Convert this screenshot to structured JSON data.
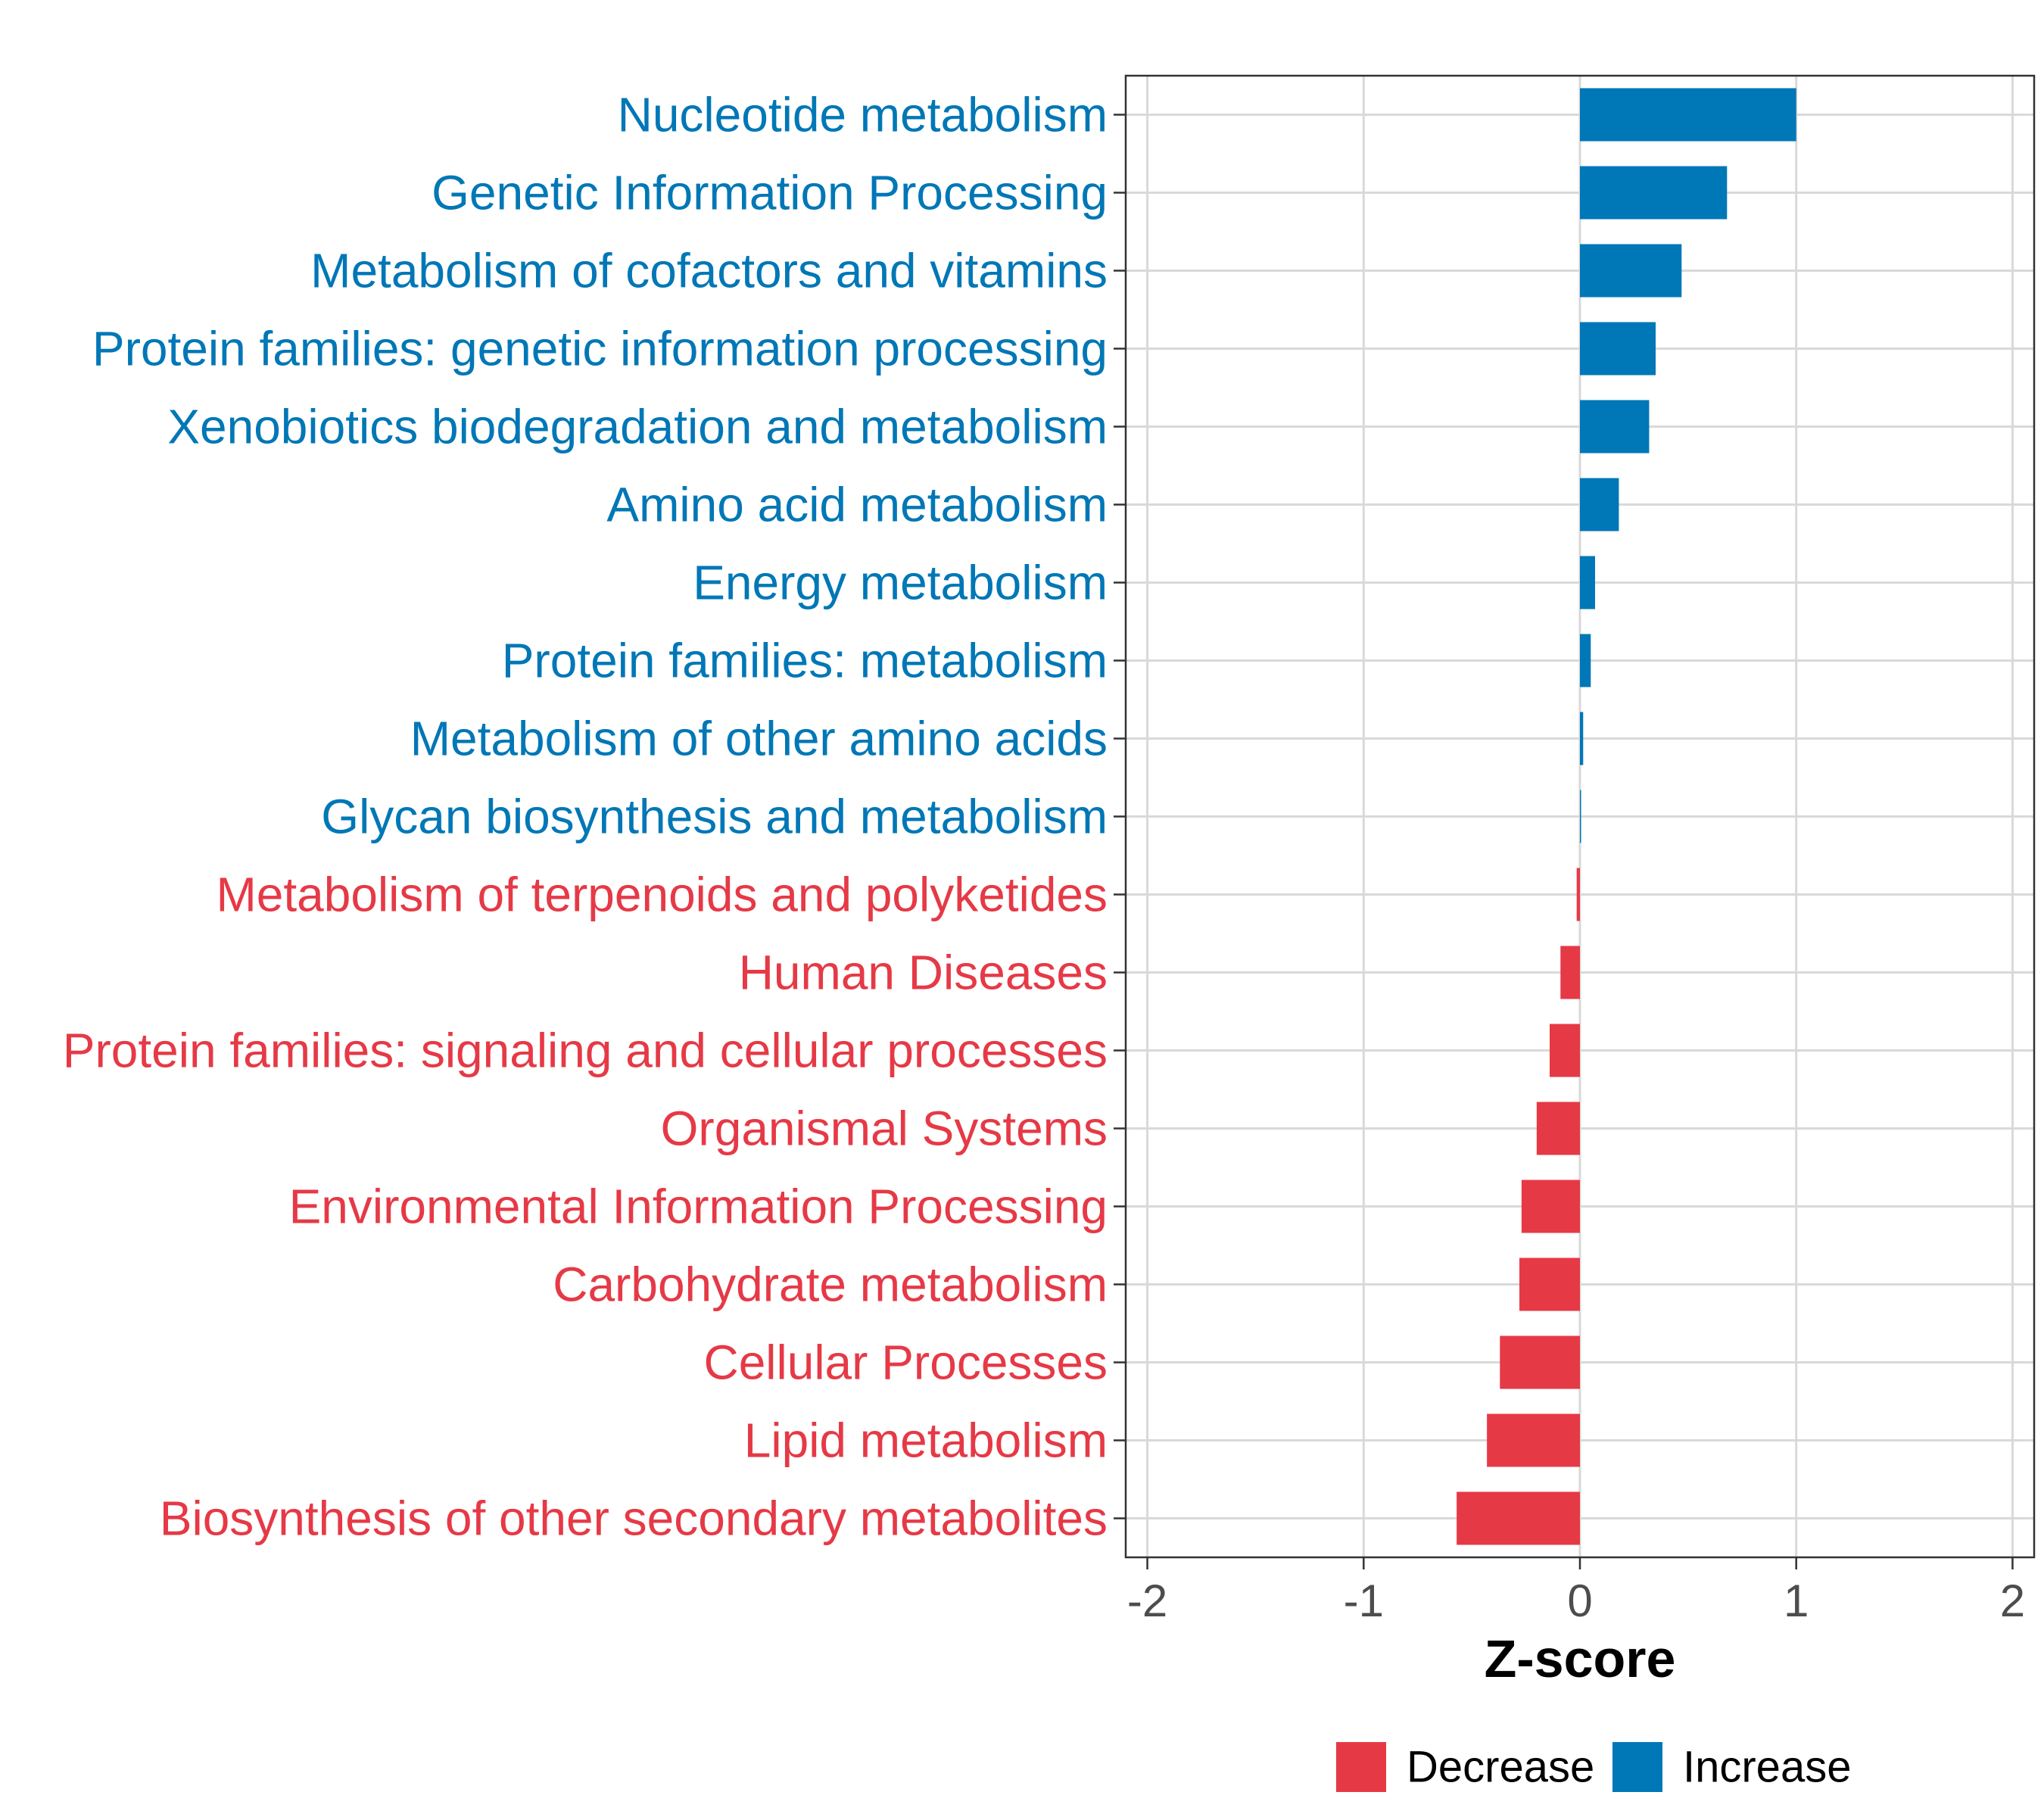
{
  "chart_data": {
    "type": "bar",
    "orientation": "horizontal",
    "title": "",
    "xlabel": "Z-score",
    "ylabel": "",
    "xlim": [
      -2.1,
      2.1
    ],
    "xticks": [
      -2,
      -1,
      0,
      1,
      2
    ],
    "xtick_labels": [
      "-2",
      "-1",
      "0",
      "1",
      "2"
    ],
    "grid": true,
    "colors": {
      "Decrease": "#e63946",
      "Increase": "#0077b6"
    },
    "legend": {
      "position": "bottom",
      "entries": [
        "Decrease",
        "Increase"
      ]
    },
    "categories": [
      "Nucleotide metabolism",
      "Genetic Information Processing",
      "Metabolism of cofactors and vitamins",
      "Protein families: genetic information processing",
      "Xenobiotics biodegradation and metabolism",
      "Amino acid metabolism",
      "Energy metabolism",
      "Protein families: metabolism",
      "Metabolism of other amino acids",
      "Glycan biosynthesis and metabolism",
      "Metabolism of terpenoids and polyketides",
      "Human Diseases",
      "Protein families: signaling and cellular processes",
      "Organismal Systems",
      "Environmental Information Processing",
      "Carbohydrate metabolism",
      "Cellular Processes",
      "Lipid metabolism",
      "Biosynthesis of other secondary metabolites"
    ],
    "values": [
      1.0,
      0.68,
      0.47,
      0.35,
      0.32,
      0.18,
      0.07,
      0.05,
      0.015,
      0.005,
      -0.015,
      -0.09,
      -0.14,
      -0.2,
      -0.27,
      -0.28,
      -0.37,
      -0.43,
      -0.57
    ],
    "groups": [
      "Increase",
      "Increase",
      "Increase",
      "Increase",
      "Increase",
      "Increase",
      "Increase",
      "Increase",
      "Increase",
      "Increase",
      "Decrease",
      "Decrease",
      "Decrease",
      "Decrease",
      "Decrease",
      "Decrease",
      "Decrease",
      "Decrease",
      "Decrease"
    ]
  }
}
